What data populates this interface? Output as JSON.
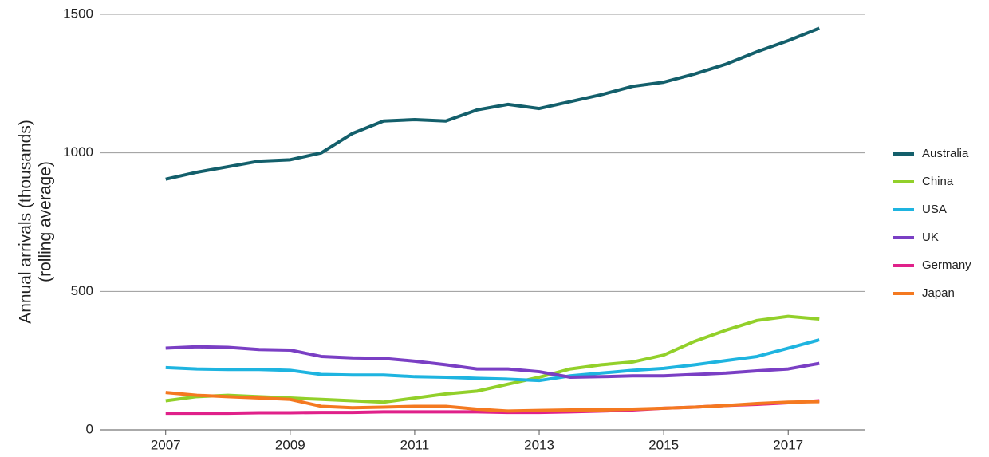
{
  "chart_data": {
    "type": "line",
    "y_label": [
      "Annual arrivals (thousands)",
      "(rolling average)"
    ],
    "x": [
      2007,
      2007.5,
      2008,
      2008.5,
      2009,
      2009.5,
      2010,
      2010.5,
      2011,
      2011.5,
      2012,
      2012.5,
      2013,
      2013.5,
      2014,
      2014.5,
      2015,
      2015.5,
      2016,
      2016.5,
      2017,
      2017.5
    ],
    "series": [
      {
        "name": "Australia",
        "color": "#135f6b",
        "values": [
          905,
          930,
          950,
          970,
          975,
          1000,
          1070,
          1115,
          1120,
          1115,
          1155,
          1175,
          1160,
          1185,
          1210,
          1240,
          1255,
          1285,
          1320,
          1365,
          1405,
          1450
        ]
      },
      {
        "name": "China",
        "color": "#92d02a",
        "values": [
          105,
          120,
          125,
          120,
          115,
          110,
          105,
          100,
          115,
          130,
          140,
          165,
          190,
          220,
          235,
          245,
          270,
          320,
          360,
          395,
          410,
          400
        ]
      },
      {
        "name": "USA",
        "color": "#1eb4e0",
        "values": [
          225,
          220,
          218,
          218,
          215,
          200,
          198,
          198,
          192,
          190,
          186,
          183,
          178,
          195,
          205,
          215,
          222,
          235,
          250,
          265,
          295,
          325
        ]
      },
      {
        "name": "UK",
        "color": "#7a3fc4",
        "values": [
          295,
          300,
          298,
          290,
          288,
          265,
          260,
          258,
          248,
          235,
          220,
          220,
          210,
          190,
          192,
          195,
          195,
          200,
          205,
          213,
          220,
          240
        ]
      },
      {
        "name": "Germany",
        "color": "#e0218a",
        "values": [
          60,
          60,
          60,
          62,
          62,
          63,
          63,
          65,
          65,
          65,
          65,
          63,
          63,
          65,
          68,
          72,
          78,
          82,
          88,
          92,
          98,
          105
        ]
      },
      {
        "name": "Japan",
        "color": "#f47920",
        "values": [
          135,
          125,
          120,
          115,
          110,
          85,
          80,
          82,
          85,
          85,
          75,
          68,
          70,
          72,
          72,
          75,
          78,
          82,
          88,
          95,
          100,
          102
        ]
      }
    ],
    "xlim": [
      2005.94,
      2018.24
    ],
    "xticks": [
      2007,
      2009,
      2011,
      2013,
      2015,
      2017
    ],
    "ylim": [
      0,
      1500
    ],
    "yticks": [
      0,
      500,
      1000,
      1500
    ],
    "grid": true,
    "legend": "right"
  }
}
